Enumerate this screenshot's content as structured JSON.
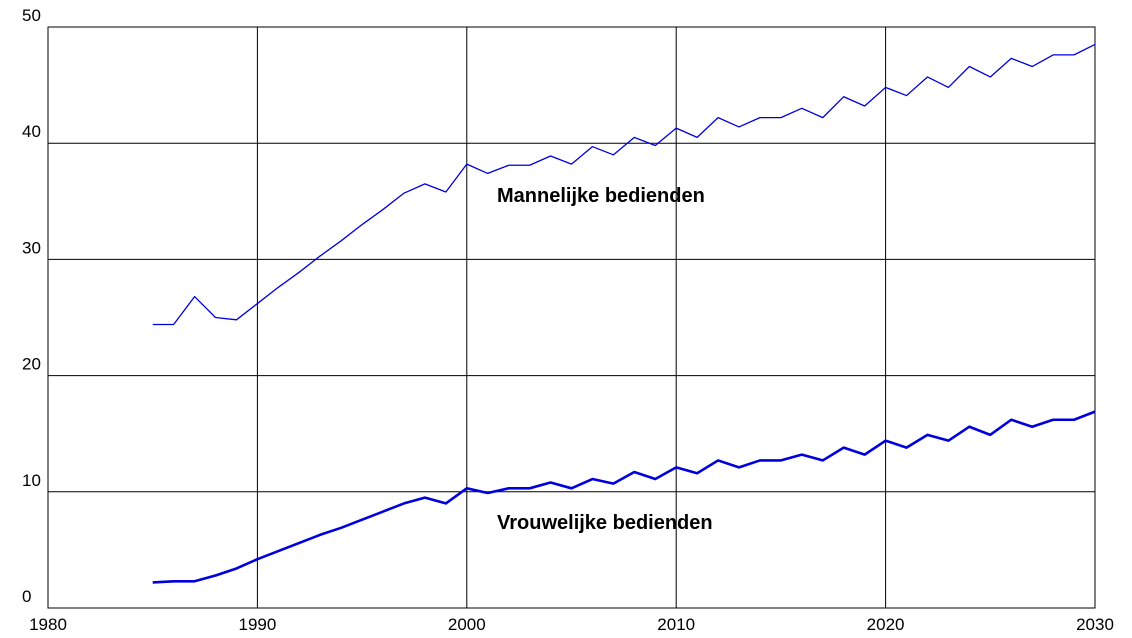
{
  "chart_data": {
    "type": "line",
    "x": [
      1985,
      1986,
      1987,
      1988,
      1989,
      1990,
      1991,
      1992,
      1993,
      1994,
      1995,
      1996,
      1997,
      1998,
      1999,
      2000,
      2001,
      2002,
      2003,
      2004,
      2005,
      2006,
      2007,
      2008,
      2009,
      2010,
      2011,
      2012,
      2013,
      2014,
      2015,
      2016,
      2017,
      2018,
      2019,
      2020,
      2021,
      2022,
      2023,
      2024,
      2025,
      2026,
      2027,
      2028,
      2029,
      2030
    ],
    "series": [
      {
        "name": "Mannelijke bedienden",
        "color": "#0000dd",
        "values": [
          24.4,
          24.4,
          26.8,
          25.0,
          24.8,
          26.2,
          27.6,
          28.9,
          30.3,
          31.6,
          33.0,
          34.3,
          35.7,
          36.5,
          35.8,
          38.2,
          37.4,
          38.1,
          38.1,
          38.9,
          38.2,
          39.7,
          39.0,
          40.5,
          39.8,
          41.3,
          40.5,
          42.2,
          41.4,
          42.2,
          42.2,
          43.0,
          42.2,
          44.0,
          43.2,
          44.8,
          44.1,
          45.7,
          44.8,
          46.6,
          45.7,
          47.3,
          46.6,
          47.6,
          47.6,
          48.5
        ]
      },
      {
        "name": "Vrouwelijke bedienden",
        "color": "#0000dd",
        "values": [
          2.2,
          2.3,
          2.3,
          2.8,
          3.4,
          4.2,
          4.9,
          5.6,
          6.3,
          6.9,
          7.6,
          8.3,
          9.0,
          9.5,
          9.0,
          10.3,
          9.9,
          10.3,
          10.3,
          10.8,
          10.3,
          11.1,
          10.7,
          11.7,
          11.1,
          12.1,
          11.6,
          12.7,
          12.1,
          12.7,
          12.7,
          13.2,
          12.7,
          13.8,
          13.2,
          14.4,
          13.8,
          14.9,
          14.4,
          15.6,
          14.9,
          16.2,
          15.6,
          16.2,
          16.2,
          16.9
        ]
      }
    ],
    "xlim": [
      1980,
      2030
    ],
    "xticks": [
      1980,
      1990,
      2000,
      2010,
      2020,
      2030
    ],
    "ylim": [
      0,
      50
    ],
    "yticks": [
      0,
      10,
      20,
      30,
      40,
      50
    ],
    "grid": true
  }
}
